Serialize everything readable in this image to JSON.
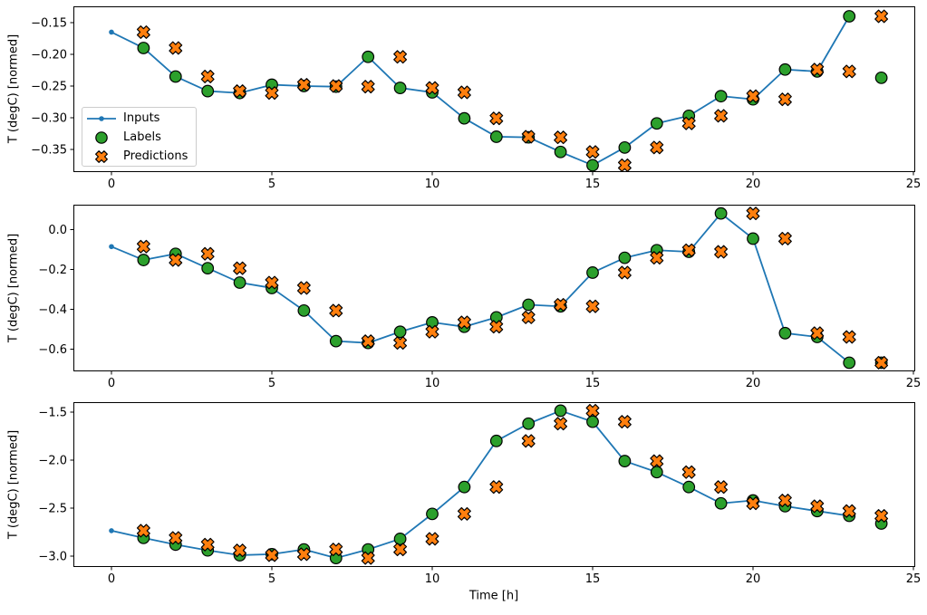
{
  "figure": {
    "xlabel": "Time [h]",
    "ylabel": "T (degC) [normed]",
    "background": "#ffffff",
    "colors": {
      "inputs": "#1f77b4",
      "labels": "#2ca02c",
      "predictions": "#ff7f0e",
      "marker_edge": "#000000",
      "axis": "#000000",
      "legend_border": "#cccccc"
    },
    "legend": {
      "items": [
        {
          "label": "Inputs",
          "marker": "line-with-dot"
        },
        {
          "label": "Labels",
          "marker": "filled-circle"
        },
        {
          "label": "Predictions",
          "marker": "thick-x"
        }
      ]
    }
  },
  "chart_data": [
    {
      "type": "line",
      "title": "",
      "xlabel": "",
      "ylabel": "T (degC) [normed]",
      "grid": false,
      "xlim": [
        -1.186,
        25.056
      ],
      "ylim": [
        -0.3858,
        -0.1243
      ],
      "xticks": [
        0,
        5,
        10,
        15,
        20,
        25
      ],
      "yticks": [
        {
          "value": -0.15,
          "label": "−0.15"
        },
        {
          "value": -0.2,
          "label": "−0.20"
        },
        {
          "value": -0.25,
          "label": "−0.25"
        },
        {
          "value": -0.3,
          "label": "−0.30"
        },
        {
          "value": -0.35,
          "label": "−0.35"
        }
      ],
      "series": [
        {
          "name": "Inputs",
          "style": "line-with-dot",
          "x": [
            0,
            1,
            2,
            3,
            4,
            5,
            6,
            7,
            8,
            9,
            10,
            11,
            12,
            13,
            14,
            15,
            16,
            17,
            18,
            19,
            20,
            21,
            22,
            23
          ],
          "y": [
            -0.165,
            -0.19,
            -0.235,
            -0.258,
            -0.261,
            -0.248,
            -0.25,
            -0.251,
            -0.204,
            -0.253,
            -0.26,
            -0.301,
            -0.33,
            -0.331,
            -0.354,
            -0.375,
            -0.347,
            -0.309,
            -0.297,
            -0.266,
            -0.271,
            -0.224,
            -0.227,
            -0.14
          ]
        },
        {
          "name": "Labels",
          "style": "filled-circle",
          "x": [
            1,
            2,
            3,
            4,
            5,
            6,
            7,
            8,
            9,
            10,
            11,
            12,
            13,
            14,
            15,
            16,
            17,
            18,
            19,
            20,
            21,
            22,
            23,
            24
          ],
          "y": [
            -0.19,
            -0.235,
            -0.258,
            -0.261,
            -0.248,
            -0.25,
            -0.251,
            -0.204,
            -0.253,
            -0.26,
            -0.301,
            -0.33,
            -0.331,
            -0.354,
            -0.375,
            -0.347,
            -0.309,
            -0.297,
            -0.266,
            -0.271,
            -0.224,
            -0.227,
            -0.14,
            -0.237
          ]
        },
        {
          "name": "Predictions",
          "style": "thick-x",
          "x": [
            1,
            2,
            3,
            4,
            5,
            6,
            7,
            8,
            9,
            10,
            11,
            12,
            13,
            14,
            15,
            16,
            17,
            18,
            19,
            20,
            21,
            22,
            23,
            24
          ],
          "y": [
            -0.165,
            -0.19,
            -0.235,
            -0.258,
            -0.261,
            -0.248,
            -0.25,
            -0.251,
            -0.204,
            -0.253,
            -0.26,
            -0.301,
            -0.33,
            -0.331,
            -0.354,
            -0.375,
            -0.347,
            -0.309,
            -0.297,
            -0.266,
            -0.271,
            -0.224,
            -0.227,
            -0.14
          ]
        }
      ]
    },
    {
      "type": "line",
      "title": "",
      "xlabel": "",
      "ylabel": "T (degC) [normed]",
      "grid": false,
      "xlim": [
        -1.186,
        25.056
      ],
      "ylim": [
        -0.7102,
        0.1237
      ],
      "xticks": [
        0,
        5,
        10,
        15,
        20,
        25
      ],
      "yticks": [
        {
          "value": 0.0,
          "label": "0.0"
        },
        {
          "value": -0.2,
          "label": "−0.2"
        },
        {
          "value": -0.4,
          "label": "−0.4"
        },
        {
          "value": -0.6,
          "label": "−0.6"
        }
      ],
      "series": [
        {
          "name": "Inputs",
          "style": "line-with-dot",
          "x": [
            0,
            1,
            2,
            3,
            4,
            5,
            6,
            7,
            8,
            9,
            10,
            11,
            12,
            13,
            14,
            15,
            16,
            17,
            18,
            19,
            20,
            21,
            22,
            23
          ],
          "y": [
            -0.086,
            -0.153,
            -0.122,
            -0.194,
            -0.266,
            -0.293,
            -0.406,
            -0.559,
            -0.568,
            -0.512,
            -0.465,
            -0.487,
            -0.44,
            -0.377,
            -0.385,
            -0.216,
            -0.142,
            -0.104,
            -0.112,
            0.08,
            -0.046,
            -0.519,
            -0.538,
            -0.667
          ]
        },
        {
          "name": "Labels",
          "style": "filled-circle",
          "x": [
            1,
            2,
            3,
            4,
            5,
            6,
            7,
            8,
            9,
            10,
            11,
            12,
            13,
            14,
            15,
            16,
            17,
            18,
            19,
            20,
            21,
            22,
            23,
            24
          ],
          "y": [
            -0.153,
            -0.122,
            -0.194,
            -0.266,
            -0.293,
            -0.406,
            -0.559,
            -0.568,
            -0.512,
            -0.465,
            -0.487,
            -0.44,
            -0.377,
            -0.385,
            -0.216,
            -0.142,
            -0.104,
            -0.112,
            0.08,
            -0.046,
            -0.519,
            -0.538,
            -0.667,
            -0.667
          ]
        },
        {
          "name": "Predictions",
          "style": "thick-x",
          "x": [
            1,
            2,
            3,
            4,
            5,
            6,
            7,
            8,
            9,
            10,
            11,
            12,
            13,
            14,
            15,
            16,
            17,
            18,
            19,
            20,
            21,
            22,
            23,
            24
          ],
          "y": [
            -0.086,
            -0.153,
            -0.122,
            -0.194,
            -0.266,
            -0.293,
            -0.406,
            -0.559,
            -0.568,
            -0.512,
            -0.465,
            -0.487,
            -0.44,
            -0.377,
            -0.385,
            -0.216,
            -0.142,
            -0.104,
            -0.112,
            0.08,
            -0.046,
            -0.519,
            -0.538,
            -0.667
          ]
        }
      ]
    },
    {
      "type": "line",
      "title": "",
      "xlabel": "Time [h]",
      "ylabel": "T (degC) [normed]",
      "grid": false,
      "xlim": [
        -1.186,
        25.056
      ],
      "ylim": [
        -3.113,
        -1.396
      ],
      "xticks": [
        0,
        5,
        10,
        15,
        20,
        25
      ],
      "yticks": [
        {
          "value": -1.5,
          "label": "−1.5"
        },
        {
          "value": -2.0,
          "label": "−2.0"
        },
        {
          "value": -2.5,
          "label": "−2.5"
        },
        {
          "value": -3.0,
          "label": "−3.0"
        }
      ],
      "series": [
        {
          "name": "Inputs",
          "style": "line-with-dot",
          "x": [
            0,
            1,
            2,
            3,
            4,
            5,
            6,
            7,
            8,
            9,
            10,
            11,
            12,
            13,
            14,
            15,
            16,
            17,
            18,
            19,
            20,
            21,
            22,
            23
          ],
          "y": [
            -2.735,
            -2.81,
            -2.88,
            -2.94,
            -2.99,
            -2.98,
            -2.93,
            -3.02,
            -2.93,
            -2.82,
            -2.56,
            -2.28,
            -1.8,
            -1.62,
            -1.485,
            -1.6,
            -2.01,
            -2.125,
            -2.28,
            -2.45,
            -2.42,
            -2.48,
            -2.53,
            -2.58
          ]
        },
        {
          "name": "Labels",
          "style": "filled-circle",
          "x": [
            1,
            2,
            3,
            4,
            5,
            6,
            7,
            8,
            9,
            10,
            11,
            12,
            13,
            14,
            15,
            16,
            17,
            18,
            19,
            20,
            21,
            22,
            23,
            24
          ],
          "y": [
            -2.81,
            -2.88,
            -2.94,
            -2.99,
            -2.98,
            -2.93,
            -3.02,
            -2.93,
            -2.82,
            -2.56,
            -2.28,
            -1.8,
            -1.62,
            -1.485,
            -1.6,
            -2.01,
            -2.125,
            -2.28,
            -2.45,
            -2.42,
            -2.48,
            -2.53,
            -2.58,
            -2.66
          ]
        },
        {
          "name": "Predictions",
          "style": "thick-x",
          "x": [
            1,
            2,
            3,
            4,
            5,
            6,
            7,
            8,
            9,
            10,
            11,
            12,
            13,
            14,
            15,
            16,
            17,
            18,
            19,
            20,
            21,
            22,
            23,
            24
          ],
          "y": [
            -2.735,
            -2.81,
            -2.88,
            -2.94,
            -2.99,
            -2.98,
            -2.93,
            -3.02,
            -2.93,
            -2.82,
            -2.56,
            -2.28,
            -1.8,
            -1.62,
            -1.485,
            -1.6,
            -2.01,
            -2.125,
            -2.28,
            -2.45,
            -2.42,
            -2.48,
            -2.53,
            -2.58
          ]
        }
      ]
    }
  ]
}
